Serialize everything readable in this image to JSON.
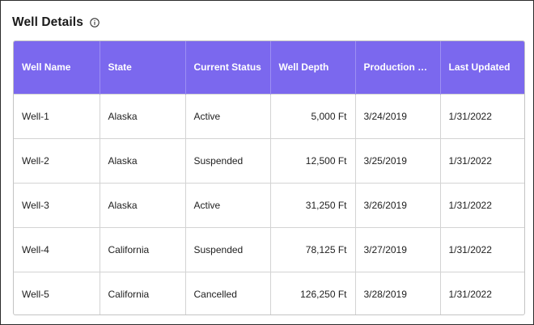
{
  "panel": {
    "title": "Well Details",
    "info_icon": "info-circle-icon"
  },
  "colors": {
    "header_bg": "#7b68ee",
    "header_text": "#ffffff",
    "grid_line": "#d3d3d3"
  },
  "table": {
    "columns": [
      "Well Name",
      "State",
      "Current Status",
      "Well Depth",
      "Production St...",
      "Last Updated"
    ],
    "rows": [
      [
        "Well-1",
        "Alaska",
        "Active",
        "5,000 Ft",
        "3/24/2019",
        "1/31/2022"
      ],
      [
        "Well-2",
        "Alaska",
        "Suspended",
        "12,500 Ft",
        "3/25/2019",
        "1/31/2022"
      ],
      [
        "Well-3",
        "Alaska",
        "Active",
        "31,250 Ft",
        "3/26/2019",
        "1/31/2022"
      ],
      [
        "Well-4",
        "California",
        "Suspended",
        "78,125 Ft",
        "3/27/2019",
        "1/31/2022"
      ],
      [
        "Well-5",
        "California",
        "Cancelled",
        "126,250 Ft",
        "3/28/2019",
        "1/31/2022"
      ]
    ]
  }
}
